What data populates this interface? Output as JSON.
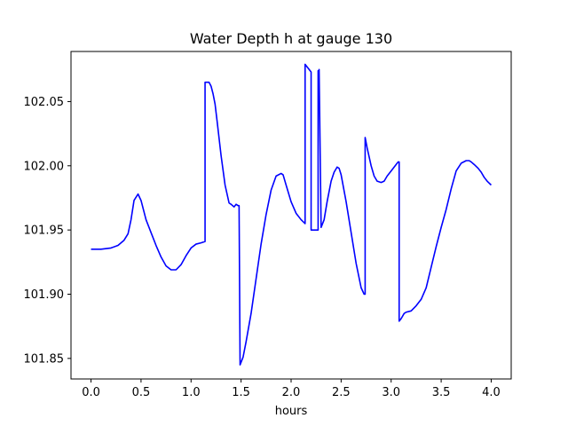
{
  "chart_data": {
    "type": "line",
    "title": "Water Depth h at gauge 130",
    "xlabel": "hours",
    "ylabel": "",
    "xlim": [
      -0.2,
      4.2
    ],
    "ylim": [
      101.834,
      102.089
    ],
    "grid": false,
    "legend": "none",
    "xticks": [
      0.0,
      0.5,
      1.0,
      1.5,
      2.0,
      2.5,
      3.0,
      3.5,
      4.0
    ],
    "xtick_labels": [
      "0.0",
      "0.5",
      "1.0",
      "1.5",
      "2.0",
      "2.5",
      "3.0",
      "3.5",
      "4.0"
    ],
    "yticks": [
      101.85,
      101.9,
      101.95,
      102.0,
      102.05
    ],
    "ytick_labels": [
      "101.85",
      "101.90",
      "101.95",
      "102.00",
      "102.05"
    ],
    "series": [
      {
        "color": "#0000ff",
        "x": [
          0.0,
          0.1,
          0.2,
          0.27,
          0.33,
          0.37,
          0.4,
          0.43,
          0.47,
          0.5,
          0.55,
          0.6,
          0.65,
          0.7,
          0.75,
          0.8,
          0.85,
          0.9,
          0.95,
          1.0,
          1.05,
          1.1,
          1.14,
          1.14,
          1.18,
          1.2,
          1.22,
          1.24,
          1.26,
          1.3,
          1.34,
          1.38,
          1.4,
          1.43,
          1.45,
          1.47,
          1.48,
          1.49,
          1.49,
          1.52,
          1.55,
          1.6,
          1.65,
          1.7,
          1.75,
          1.8,
          1.85,
          1.9,
          1.92,
          1.95,
          2.0,
          2.05,
          2.1,
          2.14,
          2.14,
          2.16,
          2.18,
          2.2,
          2.2,
          2.22,
          2.24,
          2.26,
          2.27,
          2.27,
          2.28,
          2.28,
          2.3,
          2.33,
          2.36,
          2.4,
          2.43,
          2.46,
          2.48,
          2.5,
          2.55,
          2.6,
          2.65,
          2.7,
          2.73,
          2.74,
          2.74,
          2.76,
          2.8,
          2.83,
          2.86,
          2.9,
          2.93,
          2.96,
          3.0,
          3.03,
          3.06,
          3.07,
          3.08,
          3.08,
          3.1,
          3.13,
          3.15,
          3.2,
          3.25,
          3.3,
          3.35,
          3.4,
          3.45,
          3.5,
          3.55,
          3.6,
          3.65,
          3.7,
          3.75,
          3.78,
          3.8,
          3.83,
          3.87,
          3.9,
          3.93,
          3.96,
          4.0
        ],
        "y": [
          101.935,
          101.935,
          101.936,
          101.938,
          101.942,
          101.947,
          101.958,
          101.973,
          101.978,
          101.973,
          101.958,
          101.948,
          101.938,
          101.929,
          101.922,
          101.919,
          101.919,
          101.923,
          101.93,
          101.936,
          101.939,
          101.94,
          101.941,
          102.065,
          102.065,
          102.062,
          102.056,
          102.048,
          102.035,
          102.008,
          101.985,
          101.971,
          101.97,
          101.968,
          101.97,
          101.969,
          101.969,
          101.845,
          101.845,
          101.851,
          101.863,
          101.885,
          101.912,
          101.939,
          101.962,
          101.981,
          101.992,
          101.994,
          101.993,
          101.985,
          101.972,
          101.963,
          101.958,
          101.955,
          102.079,
          102.077,
          102.075,
          102.073,
          101.95,
          101.95,
          101.95,
          101.95,
          101.95,
          102.074,
          102.074,
          102.075,
          101.952,
          101.958,
          101.972,
          101.988,
          101.995,
          101.999,
          101.998,
          101.993,
          101.972,
          101.948,
          101.924,
          101.905,
          101.9,
          101.9,
          102.022,
          102.014,
          102.0,
          101.992,
          101.988,
          101.987,
          101.988,
          101.992,
          101.996,
          101.999,
          102.002,
          102.003,
          102.003,
          101.879,
          101.881,
          101.885,
          101.886,
          101.887,
          101.891,
          101.896,
          101.905,
          101.921,
          101.937,
          101.952,
          101.966,
          101.982,
          101.996,
          102.002,
          102.004,
          102.004,
          102.003,
          102.001,
          101.998,
          101.995,
          101.991,
          101.988,
          101.985
        ]
      }
    ]
  }
}
